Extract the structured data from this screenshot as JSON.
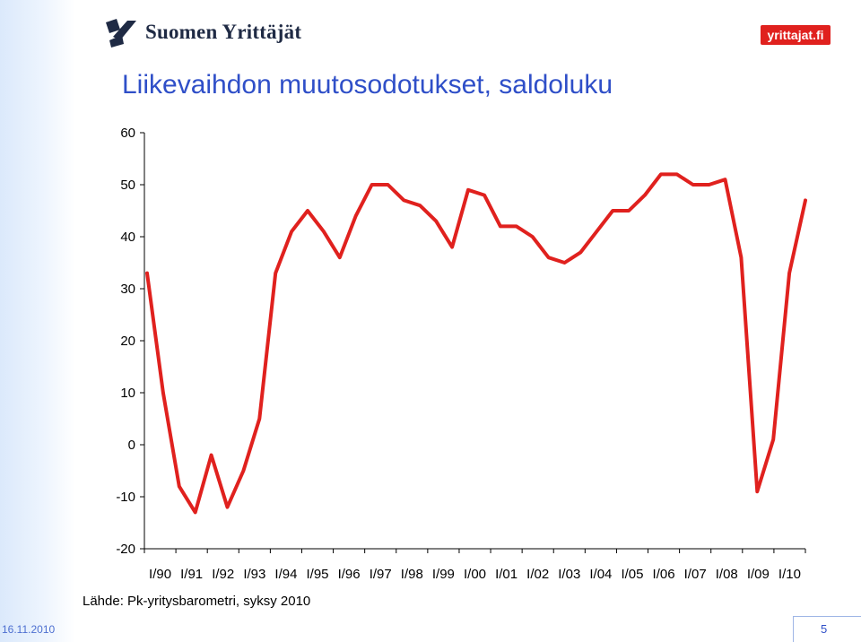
{
  "header": {
    "logo_text": "Suomen Yrittäjät",
    "site_badge": "yrittajat.fi",
    "logo_icon": "stylized-flag-icon"
  },
  "chart_data": {
    "type": "line",
    "title": "Liikevaihdon muutosodotukset, saldoluku",
    "xlabel": "",
    "ylabel": "",
    "ylim": [
      -20,
      60
    ],
    "yticks": [
      -20,
      -10,
      0,
      10,
      20,
      30,
      40,
      50,
      60
    ],
    "grid": false,
    "legend": "none",
    "line_color": "#e0211e",
    "x_tick_labels": [
      "I/90",
      "I/91",
      "I/92",
      "I/93",
      "I/94",
      "I/95",
      "I/96",
      "I/97",
      "I/98",
      "I/99",
      "I/00",
      "I/01",
      "I/02",
      "I/03",
      "I/04",
      "I/05",
      "I/06",
      "I/07",
      "I/08",
      "I/09",
      "I/10"
    ],
    "points_per_year": 2,
    "values": [
      33,
      10,
      -8,
      -13,
      -2,
      -12,
      -5,
      5,
      33,
      41,
      45,
      41,
      36,
      44,
      50,
      50,
      47,
      46,
      43,
      38,
      49,
      48,
      42,
      42,
      40,
      36,
      35,
      37,
      41,
      45,
      45,
      48,
      52,
      52,
      50,
      50,
      51,
      36,
      -9,
      1,
      33,
      47
    ]
  },
  "source": "Lähde: Pk-yritysbarometri, syksy 2010",
  "footer": {
    "date": "16.11.2010",
    "page_number": "5"
  }
}
